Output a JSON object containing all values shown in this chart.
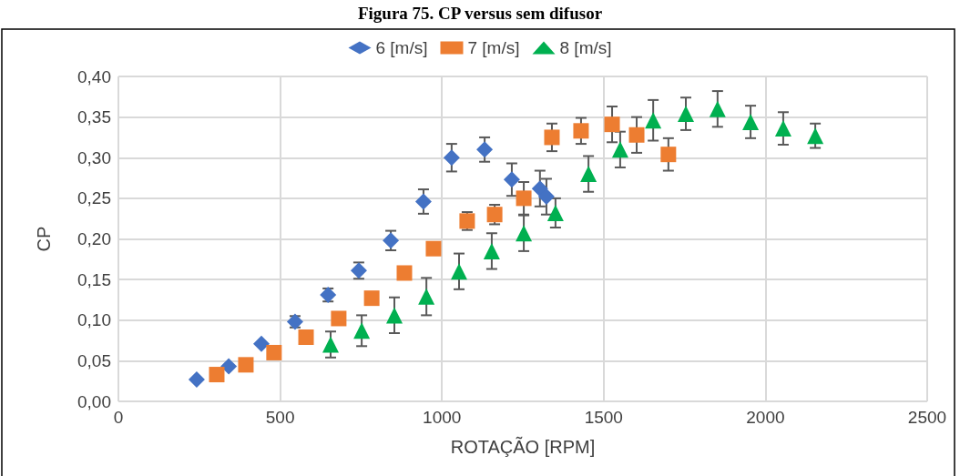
{
  "chart_data": {
    "type": "scatter",
    "title": "Figura 75. CP versus sem difusor",
    "xlabel": "ROTAÇÃO [RPM]",
    "ylabel": "CP",
    "xlim": [
      0,
      2500
    ],
    "xticks": [
      0,
      500,
      1000,
      1500,
      2000,
      2500
    ],
    "ylim": [
      0,
      0.4
    ],
    "yticks": [
      {
        "value": 0,
        "label": "0,00"
      },
      {
        "value": 0.05,
        "label": "0,05"
      },
      {
        "value": 0.1,
        "label": "0,10"
      },
      {
        "value": 0.15,
        "label": "0,15"
      },
      {
        "value": 0.2,
        "label": "0,20"
      },
      {
        "value": 0.25,
        "label": "0,25"
      },
      {
        "value": 0.3,
        "label": "0,30"
      },
      {
        "value": 0.35,
        "label": "0,35"
      },
      {
        "value": 0.4,
        "label": "0,40"
      }
    ],
    "grid": true,
    "legend": "top",
    "series": [
      {
        "name": "6 [m/s]",
        "color": "#4472c4",
        "marker": "diamond",
        "x": [
          242,
          341,
          442,
          546,
          648,
          743,
          842,
          943,
          1030,
          1132,
          1216,
          1303,
          1323
        ],
        "values": [
          0.027,
          0.043,
          0.071,
          0.098,
          0.131,
          0.161,
          0.198,
          0.246,
          0.3,
          0.31,
          0.273,
          0.262,
          0.252
        ],
        "errors": [
          null,
          null,
          null,
          0.007,
          0.008,
          0.01,
          0.012,
          0.015,
          0.017,
          0.015,
          0.02,
          0.022,
          0.022
        ]
      },
      {
        "name": "7 [m/s]",
        "color": "#ed7d31",
        "marker": "square",
        "x": [
          304,
          394,
          481,
          580,
          681,
          783,
          884,
          974,
          1078,
          1163,
          1253,
          1340,
          1430,
          1526,
          1602,
          1700
        ],
        "values": [
          0.033,
          0.045,
          0.06,
          0.079,
          0.102,
          0.127,
          0.158,
          0.188,
          0.222,
          0.23,
          0.25,
          0.325,
          0.333,
          0.341,
          0.328,
          0.304
        ],
        "errors": [
          null,
          null,
          null,
          null,
          null,
          null,
          null,
          null,
          0.011,
          0.012,
          0.02,
          0.017,
          0.016,
          0.022,
          0.022,
          0.02
        ]
      },
      {
        "name": "8 [m/s]",
        "color": "#00b050",
        "marker": "triangle",
        "x": [
          656,
          752,
          853,
          952,
          1053,
          1154,
          1253,
          1351,
          1453,
          1551,
          1653,
          1754,
          1852,
          1954,
          2055,
          2154
        ],
        "values": [
          0.07,
          0.087,
          0.106,
          0.129,
          0.16,
          0.185,
          0.207,
          0.232,
          0.28,
          0.31,
          0.346,
          0.354,
          0.36,
          0.344,
          0.336,
          0.327
        ],
        "errors": [
          0.016,
          0.019,
          0.022,
          0.023,
          0.022,
          0.022,
          0.022,
          0.018,
          0.022,
          0.022,
          0.025,
          0.02,
          0.022,
          0.02,
          0.02,
          0.015
        ]
      }
    ]
  }
}
